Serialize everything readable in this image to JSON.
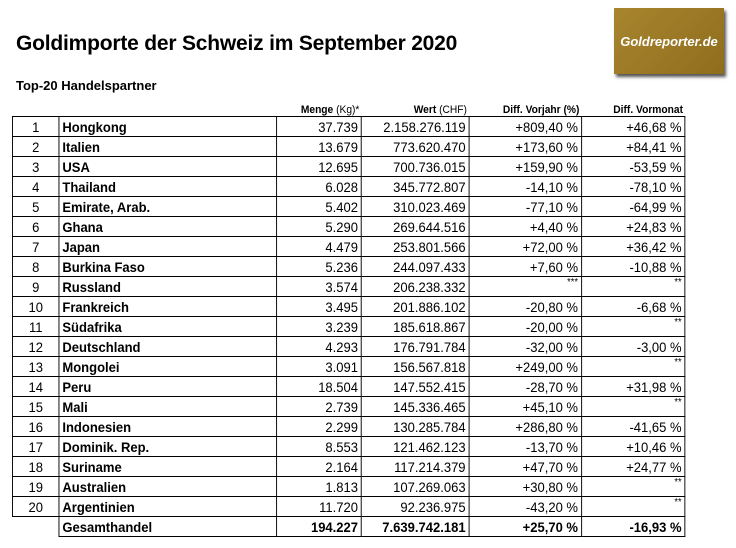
{
  "title": "Goldimporte der Schweiz im September 2020",
  "subtitle": "Top-20 Handelspartner",
  "logo_text": "Goldreporter.de",
  "headers": {
    "menge": "Menge",
    "menge_unit": "(Kg)*",
    "wert": "Wert",
    "wert_unit": "(CHF)",
    "vorjahr": "Diff. Vorjahr (%)",
    "vormonat": "Diff. Vormonat"
  },
  "rows": [
    [
      "1",
      "Hongkong",
      "37.739",
      "2.158.276.119",
      "+809,40 %",
      "+46,68 %"
    ],
    [
      "2",
      "Italien",
      "13.679",
      "773.620.470",
      "+173,60 %",
      "+84,41 %"
    ],
    [
      "3",
      "USA",
      "12.695",
      "700.736.015",
      "+159,90 %",
      "-53,59 %"
    ],
    [
      "4",
      "Thailand",
      "6.028",
      "345.772.807",
      "-14,10 %",
      "-78,10 %"
    ],
    [
      "5",
      "Emirate, Arab.",
      "5.402",
      "310.023.469",
      "-77,10 %",
      "-64,99 %"
    ],
    [
      "6",
      "Ghana",
      "5.290",
      "269.644.516",
      "+4,40 %",
      "+24,83 %"
    ],
    [
      "7",
      "Japan",
      "4.479",
      "253.801.566",
      "+72,00 %",
      "+36,42 %"
    ],
    [
      "8",
      "Burkina Faso",
      "5.236",
      "244.097.433",
      "+7,60 %",
      "-10,88 %"
    ],
    [
      "9",
      "Russland",
      "3.574",
      "206.238.332",
      "***",
      "**"
    ],
    [
      "10",
      "Frankreich",
      "3.495",
      "201.886.102",
      "-20,80 %",
      "-6,68 %"
    ],
    [
      "11",
      "Südafrika",
      "3.239",
      "185.618.867",
      "-20,00 %",
      "**"
    ],
    [
      "12",
      "Deutschland",
      "4.293",
      "176.791.784",
      "-32,00 %",
      "-3,00 %"
    ],
    [
      "13",
      "Mongolei",
      "3.091",
      "156.567.818",
      "+249,00 %",
      "**"
    ],
    [
      "14",
      "Peru",
      "18.504",
      "147.552.415",
      "-28,70 %",
      "+31,98 %"
    ],
    [
      "15",
      "Mali",
      "2.739",
      "145.336.465",
      "+45,10 %",
      "**"
    ],
    [
      "16",
      "Indonesien",
      "2.299",
      "130.285.784",
      "+286,80 %",
      "-41,65 %"
    ],
    [
      "17",
      "Dominik. Rep.",
      "8.553",
      "121.462.123",
      "-13,70 %",
      "+10,46 %"
    ],
    [
      "18",
      "Suriname",
      "2.164",
      "117.214.379",
      "+47,70 %",
      "+24,77 %"
    ],
    [
      "19",
      "Australien",
      "1.813",
      "107.269.063",
      "+30,80 %",
      "**"
    ],
    [
      "20",
      "Argentinien",
      "11.720",
      "92.236.975",
      "-43,20 %",
      "**"
    ]
  ],
  "total": {
    "label": "Gesamthandel",
    "menge": "194.227",
    "wert": "7.639.742.181",
    "vorjahr": "+25,70 %",
    "vormonat": "-16,93 %"
  }
}
